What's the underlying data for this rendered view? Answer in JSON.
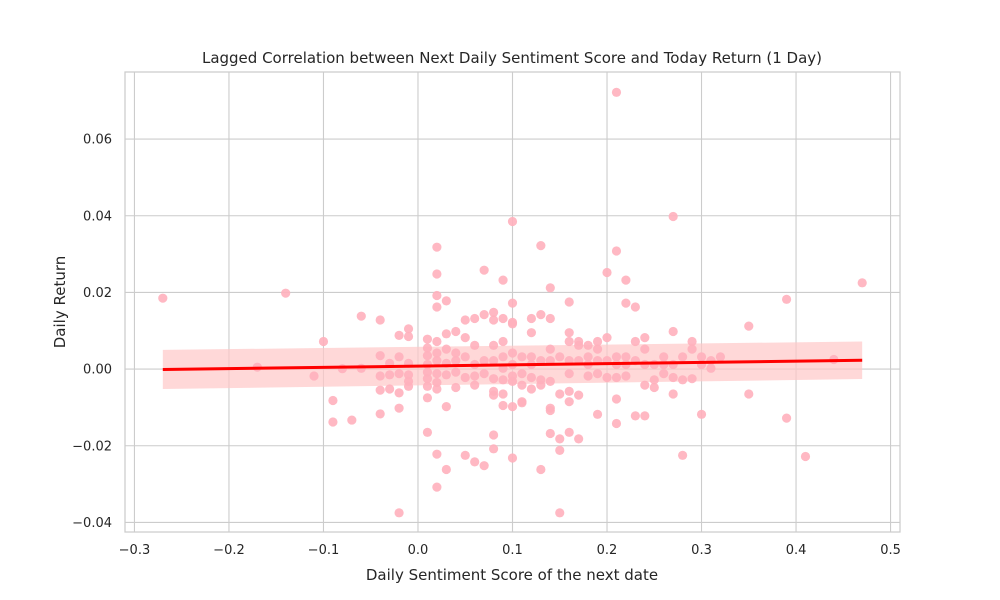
{
  "chart_data": {
    "type": "scatter",
    "title": "Lagged Correlation between Next Daily Sentiment Score and Today Return (1 Day)",
    "xlabel": "Daily Sentiment Score of the next date",
    "ylabel": "Daily Return",
    "xlim": [
      -0.31,
      0.51
    ],
    "ylim": [
      -0.0425,
      0.0775
    ],
    "x_ticks": [
      -0.3,
      -0.2,
      -0.1,
      0.0,
      0.1,
      0.2,
      0.3,
      0.4,
      0.5
    ],
    "x_tick_labels": [
      "−0.3",
      "−0.2",
      "−0.1",
      "0.0",
      "0.1",
      "0.2",
      "0.3",
      "0.4",
      "0.5"
    ],
    "y_ticks": [
      -0.04,
      -0.02,
      0.0,
      0.02,
      0.04,
      0.06
    ],
    "y_tick_labels": [
      "−0.04",
      "−0.02",
      "0.00",
      "0.02",
      "0.04",
      "0.06"
    ],
    "grid": true,
    "point_color": "#ffb0bc",
    "line_color": "#ff0000",
    "band_color": "#ffc8c8",
    "regression": {
      "x": [
        -0.27,
        0.47
      ],
      "y": [
        -0.0001,
        0.0023
      ],
      "ci_lower": [
        -0.0052,
        -0.0026
      ],
      "ci_upper": [
        0.005,
        0.0072
      ]
    },
    "points": [
      [
        -0.27,
        0.0185
      ],
      [
        -0.17,
        0.0005
      ],
      [
        -0.14,
        0.0198
      ],
      [
        -0.11,
        -0.0018
      ],
      [
        -0.1,
        0.0072
      ],
      [
        -0.09,
        -0.0082
      ],
      [
        -0.09,
        -0.0138
      ],
      [
        -0.08,
        0.0001
      ],
      [
        -0.07,
        -0.0133
      ],
      [
        -0.06,
        0.0138
      ],
      [
        -0.06,
        0.0002
      ],
      [
        -0.04,
        0.0128
      ],
      [
        -0.04,
        0.0035
      ],
      [
        -0.04,
        -0.0018
      ],
      [
        -0.04,
        -0.0055
      ],
      [
        -0.04,
        -0.0117
      ],
      [
        -0.03,
        0.0015
      ],
      [
        -0.03,
        -0.0015
      ],
      [
        -0.03,
        -0.0052
      ],
      [
        -0.02,
        0.0088
      ],
      [
        -0.02,
        0.0032
      ],
      [
        -0.02,
        -0.0012
      ],
      [
        -0.02,
        -0.0062
      ],
      [
        -0.02,
        -0.0102
      ],
      [
        -0.02,
        -0.0375
      ],
      [
        -0.01,
        0.0105
      ],
      [
        -0.01,
        0.0085
      ],
      [
        -0.01,
        0.0015
      ],
      [
        -0.01,
        -0.0015
      ],
      [
        -0.01,
        -0.0032
      ],
      [
        -0.01,
        -0.0045
      ],
      [
        0.01,
        0.0078
      ],
      [
        0.01,
        0.0055
      ],
      [
        0.01,
        0.0035
      ],
      [
        0.01,
        0.0012
      ],
      [
        0.01,
        -0.0008
      ],
      [
        0.01,
        -0.0025
      ],
      [
        0.01,
        -0.0045
      ],
      [
        0.01,
        -0.0075
      ],
      [
        0.01,
        -0.0165
      ],
      [
        0.02,
        0.0318
      ],
      [
        0.02,
        0.0248
      ],
      [
        0.02,
        0.0192
      ],
      [
        0.02,
        0.0162
      ],
      [
        0.02,
        0.0072
      ],
      [
        0.02,
        0.0042
      ],
      [
        0.02,
        0.0022
      ],
      [
        0.02,
        -0.0012
      ],
      [
        0.02,
        -0.0035
      ],
      [
        0.02,
        -0.0052
      ],
      [
        0.02,
        -0.0222
      ],
      [
        0.02,
        -0.0308
      ],
      [
        0.03,
        0.0178
      ],
      [
        0.03,
        0.0092
      ],
      [
        0.03,
        0.0052
      ],
      [
        0.03,
        0.0015
      ],
      [
        0.03,
        -0.0015
      ],
      [
        0.03,
        -0.0098
      ],
      [
        0.03,
        -0.0262
      ],
      [
        0.04,
        0.0098
      ],
      [
        0.04,
        0.0042
      ],
      [
        0.04,
        0.0022
      ],
      [
        0.04,
        -0.0008
      ],
      [
        0.04,
        -0.0048
      ],
      [
        0.05,
        0.0128
      ],
      [
        0.05,
        0.0082
      ],
      [
        0.05,
        0.0032
      ],
      [
        0.05,
        -0.0022
      ],
      [
        0.05,
        -0.0225
      ],
      [
        0.06,
        0.0132
      ],
      [
        0.06,
        0.0062
      ],
      [
        0.06,
        0.0012
      ],
      [
        0.06,
        -0.0018
      ],
      [
        0.06,
        -0.0042
      ],
      [
        0.06,
        -0.0242
      ],
      [
        0.07,
        0.0258
      ],
      [
        0.07,
        0.0142
      ],
      [
        0.07,
        0.0022
      ],
      [
        0.07,
        -0.0012
      ],
      [
        0.07,
        -0.0252
      ],
      [
        0.08,
        0.0148
      ],
      [
        0.08,
        0.0128
      ],
      [
        0.08,
        0.0062
      ],
      [
        0.08,
        0.0022
      ],
      [
        0.08,
        -0.0025
      ],
      [
        0.08,
        -0.0058
      ],
      [
        0.08,
        -0.0068
      ],
      [
        0.08,
        -0.0172
      ],
      [
        0.08,
        -0.0208
      ],
      [
        0.09,
        0.0232
      ],
      [
        0.09,
        0.0132
      ],
      [
        0.09,
        0.0072
      ],
      [
        0.09,
        0.0032
      ],
      [
        0.09,
        0.0002
      ],
      [
        0.09,
        -0.0028
      ],
      [
        0.09,
        -0.0065
      ],
      [
        0.09,
        -0.0095
      ],
      [
        0.1,
        0.0385
      ],
      [
        0.1,
        0.0172
      ],
      [
        0.1,
        0.0122
      ],
      [
        0.1,
        0.0118
      ],
      [
        0.1,
        0.0042
      ],
      [
        0.1,
        0.0012
      ],
      [
        0.1,
        -0.0018
      ],
      [
        0.1,
        -0.0032
      ],
      [
        0.1,
        -0.0098
      ],
      [
        0.1,
        -0.0232
      ],
      [
        0.11,
        0.0032
      ],
      [
        0.11,
        -0.0012
      ],
      [
        0.11,
        -0.0042
      ],
      [
        0.11,
        -0.0085
      ],
      [
        0.11,
        -0.0088
      ],
      [
        0.12,
        0.0132
      ],
      [
        0.12,
        0.0095
      ],
      [
        0.12,
        0.0032
      ],
      [
        0.12,
        0.0012
      ],
      [
        0.12,
        -0.0022
      ],
      [
        0.12,
        -0.0052
      ],
      [
        0.13,
        0.0322
      ],
      [
        0.13,
        0.0142
      ],
      [
        0.13,
        0.0022
      ],
      [
        0.13,
        -0.0028
      ],
      [
        0.13,
        -0.0042
      ],
      [
        0.13,
        -0.0262
      ],
      [
        0.14,
        0.0212
      ],
      [
        0.14,
        0.0132
      ],
      [
        0.14,
        0.0052
      ],
      [
        0.14,
        0.0022
      ],
      [
        0.14,
        -0.0032
      ],
      [
        0.14,
        -0.0102
      ],
      [
        0.14,
        -0.0108
      ],
      [
        0.14,
        -0.0168
      ],
      [
        0.15,
        0.0032
      ],
      [
        0.15,
        -0.0065
      ],
      [
        0.15,
        -0.0182
      ],
      [
        0.15,
        -0.0212
      ],
      [
        0.15,
        -0.0375
      ],
      [
        0.16,
        0.0175
      ],
      [
        0.16,
        0.0095
      ],
      [
        0.16,
        0.0072
      ],
      [
        0.16,
        0.0022
      ],
      [
        0.16,
        -0.0012
      ],
      [
        0.16,
        -0.0058
      ],
      [
        0.16,
        -0.0085
      ],
      [
        0.16,
        -0.0165
      ],
      [
        0.17,
        0.0072
      ],
      [
        0.17,
        0.0062
      ],
      [
        0.17,
        0.0022
      ],
      [
        0.17,
        -0.0068
      ],
      [
        0.17,
        -0.0182
      ],
      [
        0.18,
        0.0062
      ],
      [
        0.18,
        0.0032
      ],
      [
        0.18,
        0.0012
      ],
      [
        0.18,
        -0.0018
      ],
      [
        0.19,
        0.0072
      ],
      [
        0.19,
        0.0052
      ],
      [
        0.19,
        0.0022
      ],
      [
        0.19,
        -0.0012
      ],
      [
        0.19,
        -0.0118
      ],
      [
        0.2,
        0.0252
      ],
      [
        0.2,
        0.0082
      ],
      [
        0.2,
        0.0022
      ],
      [
        0.2,
        -0.0022
      ],
      [
        0.21,
        0.0722
      ],
      [
        0.21,
        0.0308
      ],
      [
        0.21,
        0.0032
      ],
      [
        0.21,
        0.0012
      ],
      [
        0.21,
        -0.0022
      ],
      [
        0.21,
        -0.0078
      ],
      [
        0.21,
        -0.0142
      ],
      [
        0.22,
        0.0232
      ],
      [
        0.22,
        0.0172
      ],
      [
        0.22,
        0.0032
      ],
      [
        0.22,
        0.0012
      ],
      [
        0.22,
        -0.0018
      ],
      [
        0.23,
        0.0162
      ],
      [
        0.23,
        0.0072
      ],
      [
        0.23,
        0.0022
      ],
      [
        0.23,
        -0.0122
      ],
      [
        0.24,
        0.0082
      ],
      [
        0.24,
        0.0052
      ],
      [
        0.24,
        0.0012
      ],
      [
        0.24,
        -0.0042
      ],
      [
        0.24,
        -0.0122
      ],
      [
        0.25,
        0.0012
      ],
      [
        0.25,
        -0.0028
      ],
      [
        0.25,
        -0.0048
      ],
      [
        0.26,
        0.0032
      ],
      [
        0.26,
        0.0012
      ],
      [
        0.26,
        -0.0012
      ],
      [
        0.27,
        0.0398
      ],
      [
        0.27,
        0.0098
      ],
      [
        0.27,
        0.0012
      ],
      [
        0.27,
        -0.0022
      ],
      [
        0.27,
        -0.0065
      ],
      [
        0.28,
        0.0032
      ],
      [
        0.28,
        -0.0028
      ],
      [
        0.28,
        -0.0225
      ],
      [
        0.29,
        0.0072
      ],
      [
        0.29,
        0.0052
      ],
      [
        0.29,
        -0.0025
      ],
      [
        0.3,
        0.0032
      ],
      [
        0.3,
        0.0012
      ],
      [
        0.3,
        -0.0118
      ],
      [
        0.31,
        0.0022
      ],
      [
        0.31,
        0.0002
      ],
      [
        0.32,
        0.0032
      ],
      [
        0.35,
        0.0112
      ],
      [
        0.35,
        -0.0065
      ],
      [
        0.39,
        0.0182
      ],
      [
        0.39,
        -0.0128
      ],
      [
        0.41,
        -0.0228
      ],
      [
        0.44,
        0.0025
      ],
      [
        0.47,
        0.0225
      ]
    ]
  }
}
